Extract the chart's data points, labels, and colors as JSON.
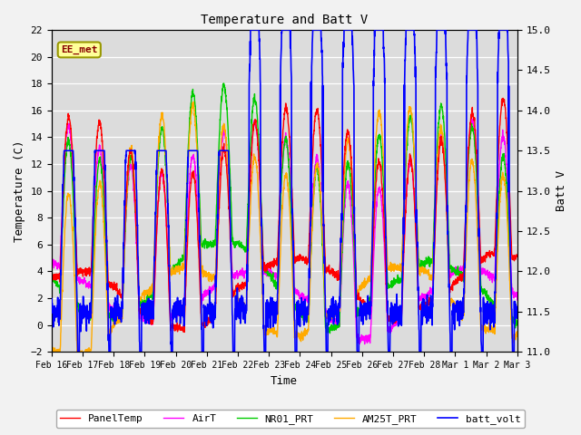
{
  "title": "Temperature and Batt V",
  "xlabel": "Time",
  "ylabel_left": "Temperature (C)",
  "ylabel_right": "Batt V",
  "left_ylim": [
    -2,
    22
  ],
  "right_ylim": [
    11.0,
    15.0
  ],
  "left_yticks": [
    -2,
    0,
    2,
    4,
    6,
    8,
    10,
    12,
    14,
    16,
    18,
    20,
    22
  ],
  "right_yticks": [
    11.0,
    11.5,
    12.0,
    12.5,
    13.0,
    13.5,
    14.0,
    14.5,
    15.0
  ],
  "annotation_text": "EE_met",
  "bg_color": "#dcdcdc",
  "plot_bg_color": "#dcdcdc",
  "legend_entries": [
    "PanelTemp",
    "AirT",
    "NR01_PRT",
    "AM25T_PRT",
    "batt_volt"
  ],
  "line_colors": [
    "#ff0000",
    "#ff00ff",
    "#00cc00",
    "#ffaa00",
    "#0000ff"
  ],
  "line_widths": [
    1.0,
    1.0,
    1.0,
    1.0,
    1.2
  ],
  "num_points": 2400,
  "num_days": 15,
  "xtick_labels": [
    "Feb 16",
    "Feb 17",
    "Feb 18",
    "Feb 19",
    "Feb 20",
    "Feb 21",
    "Feb 22",
    "Feb 23",
    "Feb 24",
    "Feb 25",
    "Feb 26",
    "Feb 27",
    "Feb 28",
    "Mar 1",
    "Mar 2",
    "Mar 3"
  ],
  "font_family": "monospace"
}
